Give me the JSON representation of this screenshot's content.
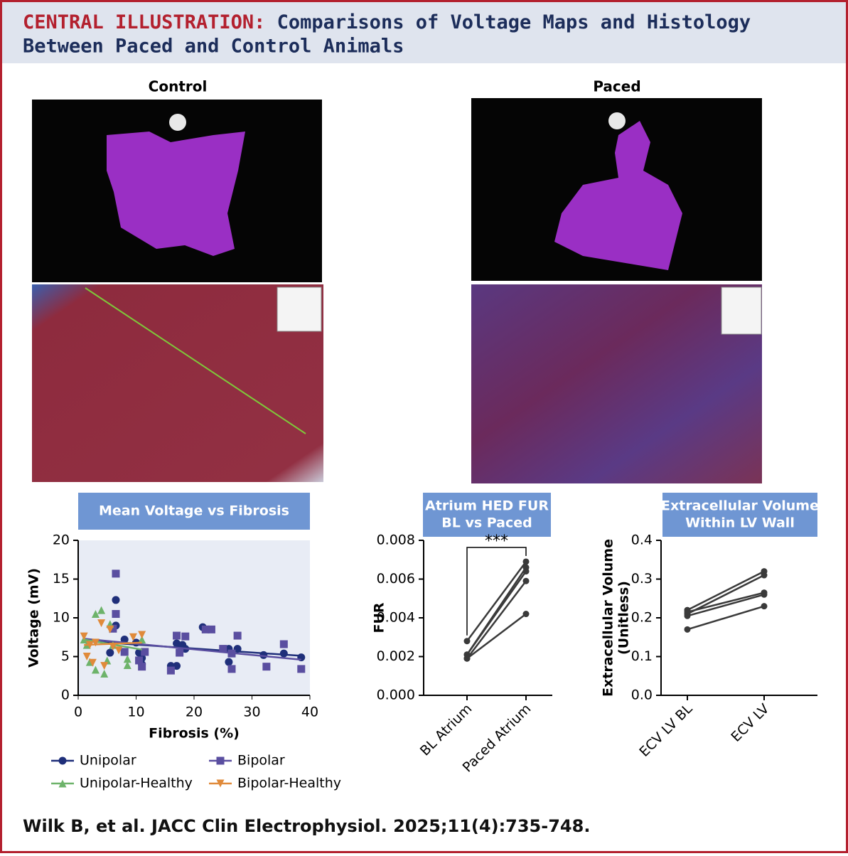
{
  "header": {
    "label": "CENTRAL ILLUSTRATION:",
    "title": [
      "Comparisons of Voltage Maps and Histology",
      "Between Paced and Control Animals"
    ]
  },
  "panels": [
    "Control",
    "Paced"
  ],
  "citation": "Wilk B, et al. JACC Clin Electrophysiol. 2025;11(4):735-748.",
  "chart_data": [
    {
      "type": "scatter",
      "title": [
        "Mean Voltage vs Fibrosis"
      ],
      "x_label": "Fibrosis (%)",
      "y_label": "Voltage (mV)",
      "xlim": [
        0,
        40
      ],
      "xticks": [
        0,
        10,
        20,
        30,
        40
      ],
      "ylim": [
        0,
        20
      ],
      "yticks": [
        0,
        5,
        10,
        15,
        20
      ],
      "series": [
        {
          "name": "Unipolar",
          "color": "#1f2f7a",
          "marker": "circle",
          "x": [
            5.5,
            6.5,
            6.5,
            8,
            10,
            11,
            10.5,
            11,
            16,
            17,
            17,
            18,
            18.5,
            21.5,
            26,
            26,
            27.5,
            32,
            35.5,
            38.5
          ],
          "values": [
            5.5,
            12.3,
            9,
            7.2,
            6.8,
            4,
            5.5,
            4.8,
            3.8,
            3.8,
            6.7,
            6.5,
            6,
            8.8,
            4.3,
            6,
            6,
            5.2,
            5.4,
            4.9
          ],
          "trend": {
            "x": [
              1,
              38.5
            ],
            "values": [
              7,
              5.1
            ]
          }
        },
        {
          "name": "Bipolar",
          "color": "#5a4ea0",
          "marker": "square",
          "x": [
            6,
            6.5,
            6.5,
            8,
            10.5,
            11,
            11.5,
            16,
            17,
            17.5,
            18.5,
            22,
            23,
            25,
            26.5,
            26.5,
            27.5,
            32.5,
            35.5,
            38.5
          ],
          "values": [
            8.6,
            15.7,
            10.5,
            5.6,
            4.5,
            3.7,
            5.6,
            3.2,
            7.7,
            5.5,
            7.6,
            8.5,
            8.5,
            6,
            3.4,
            5.4,
            7.7,
            3.7,
            6.6,
            3.4
          ],
          "trend": {
            "x": [
              1,
              38.5
            ],
            "values": [
              7.3,
              4.6
            ]
          }
        },
        {
          "name": "Unipolar-Healthy",
          "color": "#6db36a",
          "marker": "triangle-up",
          "x": [
            1,
            1.5,
            2,
            3,
            3,
            4,
            4.5,
            5,
            5.5,
            6,
            8.5,
            8.5,
            11
          ],
          "values": [
            7.2,
            6.5,
            4.3,
            10.5,
            3.3,
            11,
            2.8,
            4.5,
            9.2,
            6.5,
            4.7,
            3.9,
            7.2
          ],
          "trend": {
            "x": [
              1,
              11
            ],
            "values": [
              7.2,
              5.9
            ]
          }
        },
        {
          "name": "Bipolar-Healthy",
          "color": "#e08a3a",
          "marker": "triangle-down",
          "x": [
            1,
            1.5,
            2,
            2.5,
            3,
            4,
            4.5,
            5.5,
            6,
            7,
            9.5,
            11
          ],
          "values": [
            7.6,
            5,
            6.5,
            4.2,
            6.8,
            9.3,
            3.8,
            8.5,
            6.3,
            5.8,
            7.5,
            7.8
          ],
          "trend": {
            "x": [
              1,
              11
            ],
            "values": [
              6.5,
              6.8
            ]
          }
        }
      ]
    },
    {
      "type": "paired",
      "title": [
        "Atrium HED FUR",
        "BL vs Paced"
      ],
      "y_label": "FUR",
      "annotation": "***",
      "categories": [
        "BL Atrium",
        "Paced Atrium"
      ],
      "color": "#3a3a3a",
      "ylim": [
        0,
        0.008
      ],
      "yticks": [
        {
          "value": 0,
          "label": "0.000"
        },
        0.002,
        0.004,
        0.006,
        0.008
      ],
      "values": [
        [
          0.0028,
          0.0069
        ],
        [
          0.0021,
          0.0066
        ],
        [
          0.0021,
          0.0064
        ],
        [
          0.0019,
          0.0059
        ],
        [
          0.0019,
          0.0042
        ]
      ]
    },
    {
      "type": "paired",
      "title": [
        "Extracellular Volume",
        "Within LV Wall"
      ],
      "y_label": [
        "Extracellular Volume",
        "(Unitless)"
      ],
      "categories": [
        "ECV LV BL",
        "ECV LV"
      ],
      "color": "#3a3a3a",
      "ylim": [
        0,
        0.4
      ],
      "yticks": [
        {
          "value": 0,
          "label": "0.0"
        },
        0.1,
        0.2,
        0.3,
        0.4
      ],
      "values": [
        [
          0.22,
          0.32
        ],
        [
          0.21,
          0.31
        ],
        [
          0.215,
          0.265
        ],
        [
          0.205,
          0.26
        ],
        [
          0.17,
          0.23
        ]
      ]
    }
  ]
}
